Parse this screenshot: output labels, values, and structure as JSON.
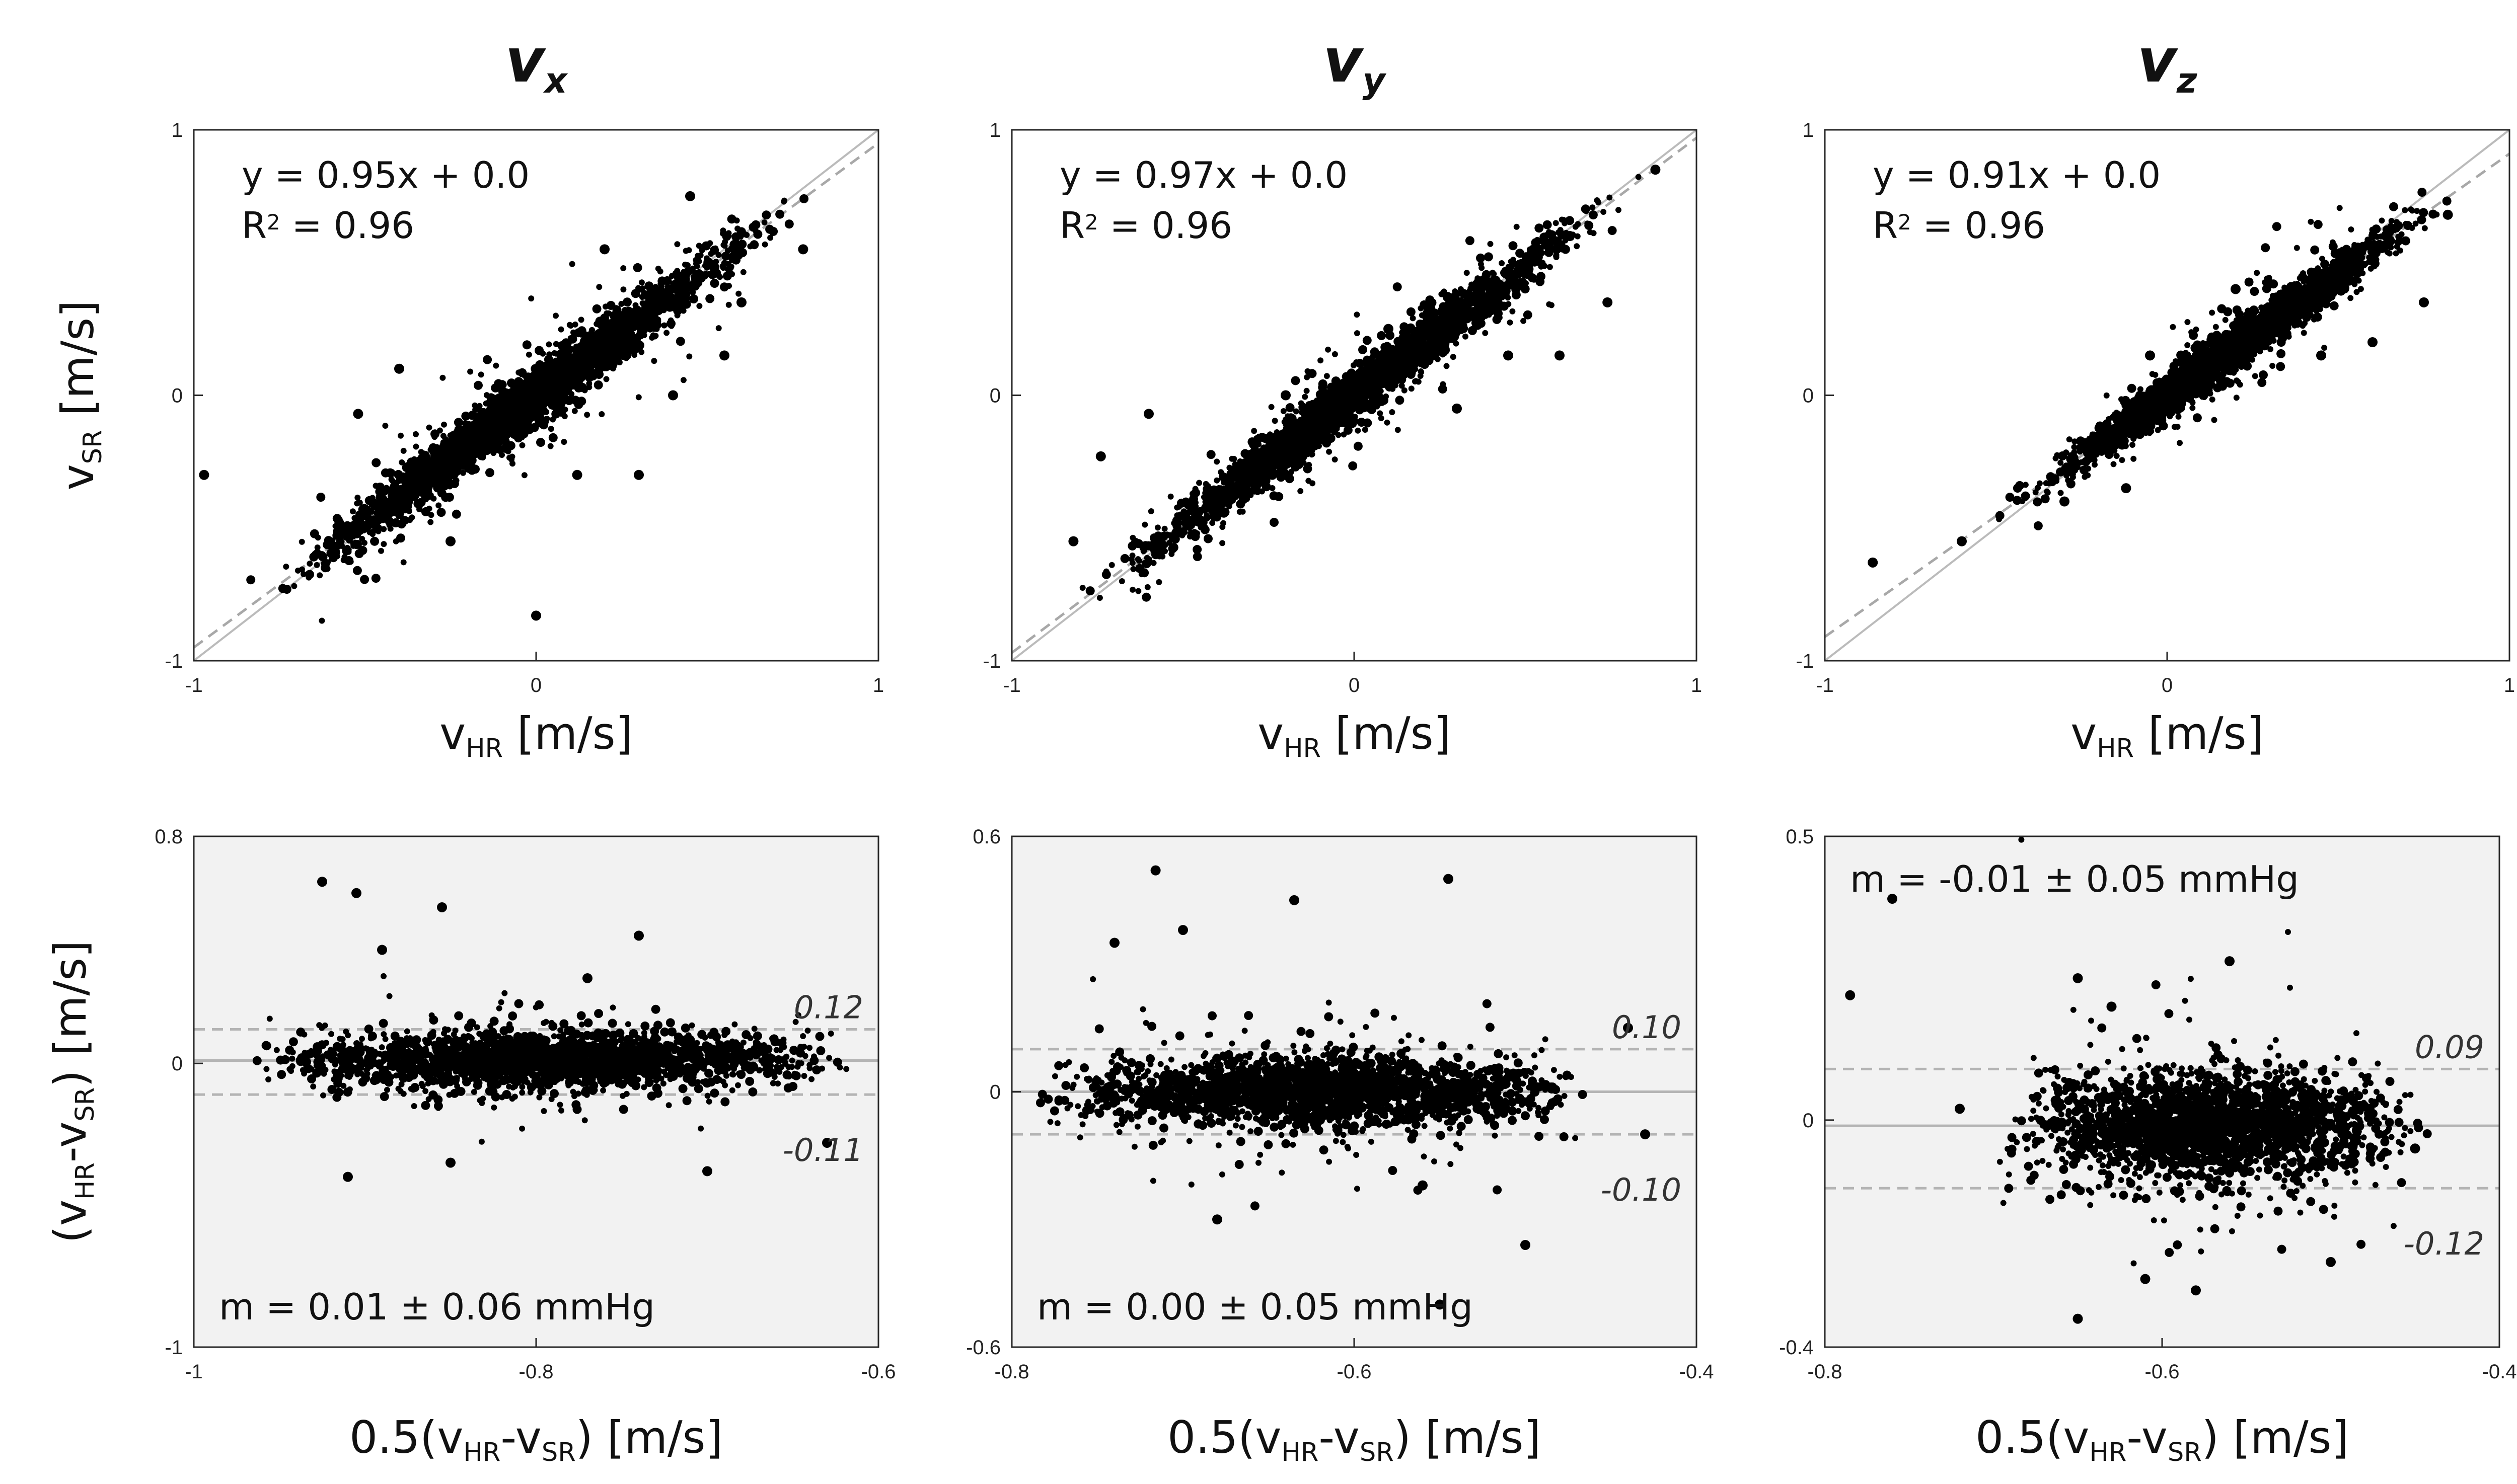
{
  "colors": {
    "marker": "#000000",
    "identity": "#bbbbbb",
    "fit": "#a8a8a8",
    "shade": "#f2f2f2",
    "mean_line": "#b4b4b4",
    "limit_line": "#b4b4b4"
  },
  "chart_data": [
    {
      "type": "scatter",
      "id": "scatter-vx",
      "title_main": "v",
      "title_sub": "x",
      "xlabel_main": "v",
      "xlabel_sub": "HR",
      "xlabel_unit": " [m/s]",
      "ylabel_main": "v",
      "ylabel_sub": "SR",
      "ylabel_unit": " [m/s]",
      "xlim": [
        -1,
        1
      ],
      "ylim": [
        -1,
        1
      ],
      "xticks": [
        -1,
        0,
        1
      ],
      "yticks": [
        -1,
        0,
        1
      ],
      "x_tick_labels": [
        "-1",
        "0",
        "1"
      ],
      "y_tick_labels": [
        "-1",
        "0",
        "1"
      ],
      "fit": {
        "slope": 0.95,
        "intercept": 0.0,
        "r2": 0.96
      },
      "equation_text": "y  = 0.95x + 0.0",
      "r2_prefix": "R",
      "r2_sup": "2",
      "r2_suffix": " = 0.96",
      "cloud": {
        "seed": 11,
        "n": 2600,
        "xmin": -0.85,
        "xmax": 0.83,
        "noise": 0.05
      },
      "outliers": [
        [
          -0.97,
          -0.3
        ],
        [
          -0.52,
          -0.07
        ],
        [
          -0.25,
          -0.55
        ],
        [
          0.0,
          -0.83
        ],
        [
          0.12,
          -0.3
        ],
        [
          0.3,
          -0.3
        ],
        [
          0.4,
          0.0
        ],
        [
          0.55,
          0.15
        ],
        [
          0.78,
          0.55
        ],
        [
          -0.4,
          0.1
        ],
        [
          0.2,
          0.55
        ],
        [
          0.6,
          0.35
        ],
        [
          0.45,
          0.75
        ]
      ]
    },
    {
      "type": "scatter",
      "id": "scatter-vy",
      "title_main": "v",
      "title_sub": "y",
      "xlabel_main": "v",
      "xlabel_sub": "HR",
      "xlabel_unit": " [m/s]",
      "xlim": [
        -1,
        1
      ],
      "ylim": [
        -1,
        1
      ],
      "xticks": [
        -1,
        0,
        1
      ],
      "yticks": [
        -1,
        0,
        1
      ],
      "x_tick_labels": [
        "-1",
        "0",
        "1"
      ],
      "y_tick_labels": [
        "-1",
        "0",
        "1"
      ],
      "fit": {
        "slope": 0.97,
        "intercept": 0.0,
        "r2": 0.96
      },
      "equation_text": "y  = 0.97x + 0.0",
      "r2_prefix": "R",
      "r2_sup": "2",
      "r2_suffix": " = 0.96",
      "cloud": {
        "seed": 23,
        "n": 2600,
        "xmin": -0.85,
        "xmax": 0.85,
        "noise": 0.045
      },
      "outliers": [
        [
          -0.74,
          -0.23
        ],
        [
          -0.6,
          -0.07
        ],
        [
          -0.35,
          -0.3
        ],
        [
          -0.2,
          0.0
        ],
        [
          0.1,
          0.25
        ],
        [
          0.3,
          -0.05
        ],
        [
          0.45,
          0.15
        ],
        [
          0.63,
          0.6
        ],
        [
          0.74,
          0.35
        ],
        [
          0.88,
          0.85
        ],
        [
          0.6,
          0.15
        ],
        [
          -0.82,
          -0.55
        ]
      ]
    },
    {
      "type": "scatter",
      "id": "scatter-vz",
      "title_main": "v",
      "title_sub": "z",
      "xlabel_main": "v",
      "xlabel_sub": "HR",
      "xlabel_unit": " [m/s]",
      "xlim": [
        -1,
        1
      ],
      "ylim": [
        -1,
        1
      ],
      "xticks": [
        -1,
        0,
        1
      ],
      "yticks": [
        -1,
        0,
        1
      ],
      "x_tick_labels": [
        "-1",
        "0",
        "1"
      ],
      "y_tick_labels": [
        "-1",
        "0",
        "1"
      ],
      "fit": {
        "slope": 0.91,
        "intercept": 0.0,
        "r2": 0.96
      },
      "equation_text": "y  = 0.91x + 0.0",
      "r2_prefix": "R",
      "r2_sup": "2",
      "r2_suffix": " = 0.96",
      "cloud": {
        "seed": 37,
        "n": 2600,
        "xmin": -0.5,
        "xmax": 0.85,
        "noise": 0.04
      },
      "outliers": [
        [
          -0.86,
          -0.63
        ],
        [
          -0.6,
          -0.55
        ],
        [
          -0.3,
          -0.4
        ],
        [
          -0.12,
          -0.35
        ],
        [
          -0.1,
          -0.05
        ],
        [
          0.2,
          0.4
        ],
        [
          0.45,
          0.15
        ],
        [
          0.6,
          0.2
        ],
        [
          0.75,
          0.35
        ],
        [
          0.82,
          0.68
        ],
        [
          -0.05,
          0.15
        ]
      ]
    },
    {
      "type": "scatter",
      "id": "bland-altman-vx",
      "xlabel_prefix": "0.5(v",
      "xlabel_sub1": "HR",
      "xlabel_mid": "-v",
      "xlabel_sub2": "SR",
      "xlabel_suffix": ") [m/s]",
      "ylabel_prefix": "(v",
      "ylabel_sub1": "HR",
      "ylabel_mid": "-v",
      "ylabel_sub2": "SR",
      "ylabel_suffix": ") [m/s]",
      "xlim": [
        -1,
        -0.6
      ],
      "ylim": [
        -1,
        0.8
      ],
      "xticks": [
        -1,
        -0.8,
        -0.6
      ],
      "yticks": [
        -1,
        0,
        0.8
      ],
      "x_tick_labels": [
        "-1",
        "-0.8",
        "-0.6"
      ],
      "y_tick_labels": [
        "-1",
        "0",
        "0.8"
      ],
      "mean": 0.01,
      "sd": 0.06,
      "upper_limit": 0.12,
      "lower_limit": -0.11,
      "upper_label": "0.12",
      "lower_label": "-0.11",
      "mean_text": "m  = 0.01 ± 0.06 mmHg",
      "mean_text_pos": "bottom-left",
      "cloud": {
        "seed": 51,
        "n": 2200,
        "xmin": -0.96,
        "xmax": -0.63,
        "spread": 0.045
      },
      "outliers": [
        [
          -0.925,
          0.64
        ],
        [
          -0.905,
          0.6
        ],
        [
          -0.855,
          0.55
        ],
        [
          -0.89,
          0.4
        ],
        [
          -0.74,
          0.45
        ],
        [
          -0.91,
          -0.4
        ],
        [
          -0.85,
          -0.35
        ],
        [
          -0.7,
          -0.38
        ],
        [
          -0.63,
          -0.28
        ],
        [
          -0.77,
          0.3
        ]
      ]
    },
    {
      "type": "scatter",
      "id": "bland-altman-vy",
      "xlabel_prefix": "0.5(v",
      "xlabel_sub1": "HR",
      "xlabel_mid": "-v",
      "xlabel_sub2": "SR",
      "xlabel_suffix": ") [m/s]",
      "xlim": [
        -0.8,
        -0.4
      ],
      "ylim": [
        -0.6,
        0.6
      ],
      "xticks": [
        -0.8,
        -0.6,
        -0.4
      ],
      "yticks": [
        -0.6,
        0,
        0.6
      ],
      "x_tick_labels": [
        "-0.8",
        "-0.6",
        "-0.4"
      ],
      "y_tick_labels": [
        "-0.6",
        "0",
        "0.6"
      ],
      "mean": 0.0,
      "sd": 0.05,
      "upper_limit": 0.1,
      "lower_limit": -0.1,
      "upper_label": "0.10",
      "lower_label": "-0.10",
      "mean_text": "m  = 0.00 ± 0.05 mmHg",
      "mean_text_pos": "bottom-left",
      "cloud": {
        "seed": 67,
        "n": 2200,
        "xmin": -0.78,
        "xmax": -0.47,
        "spread": 0.04
      },
      "outliers": [
        [
          -0.716,
          0.52
        ],
        [
          -0.7,
          0.38
        ],
        [
          -0.635,
          0.45
        ],
        [
          -0.545,
          0.5
        ],
        [
          -0.74,
          0.35
        ],
        [
          -0.68,
          -0.3
        ],
        [
          -0.56,
          -0.22
        ],
        [
          -0.5,
          -0.36
        ],
        [
          -0.43,
          -0.1
        ],
        [
          -0.44,
          0.15
        ],
        [
          -0.55,
          -0.5
        ]
      ]
    },
    {
      "type": "scatter",
      "id": "bland-altman-vz",
      "xlabel_prefix": "0.5(v",
      "xlabel_sub1": "HR",
      "xlabel_mid": "-v",
      "xlabel_sub2": "SR",
      "xlabel_suffix": ") [m/s]",
      "xlim": [
        -0.8,
        -0.4
      ],
      "ylim": [
        -0.4,
        0.5
      ],
      "xticks": [
        -0.8,
        -0.6,
        -0.4
      ],
      "yticks": [
        -0.4,
        0,
        0.5
      ],
      "x_tick_labels": [
        "-0.8",
        "-0.6",
        "-0.4"
      ],
      "y_tick_labels": [
        "-0.4",
        "0",
        "0.5"
      ],
      "mean": -0.01,
      "sd": 0.05,
      "upper_limit": 0.09,
      "lower_limit": -0.12,
      "upper_label": "0.09",
      "lower_label": "-0.12",
      "mean_text": "m  = -0.01 ± 0.05 mmHg",
      "mean_text_pos": "top-left",
      "cloud": {
        "seed": 83,
        "n": 2200,
        "xmin": -0.69,
        "xmax": -0.45,
        "spread": 0.045
      },
      "outliers": [
        [
          -0.785,
          0.22
        ],
        [
          -0.76,
          0.39
        ],
        [
          -0.65,
          0.25
        ],
        [
          -0.63,
          0.2
        ],
        [
          -0.56,
          0.28
        ],
        [
          -0.65,
          -0.35
        ],
        [
          -0.58,
          -0.3
        ],
        [
          -0.5,
          -0.25
        ],
        [
          -0.45,
          -0.05
        ],
        [
          -0.72,
          0.02
        ],
        [
          -0.61,
          -0.28
        ]
      ]
    }
  ]
}
